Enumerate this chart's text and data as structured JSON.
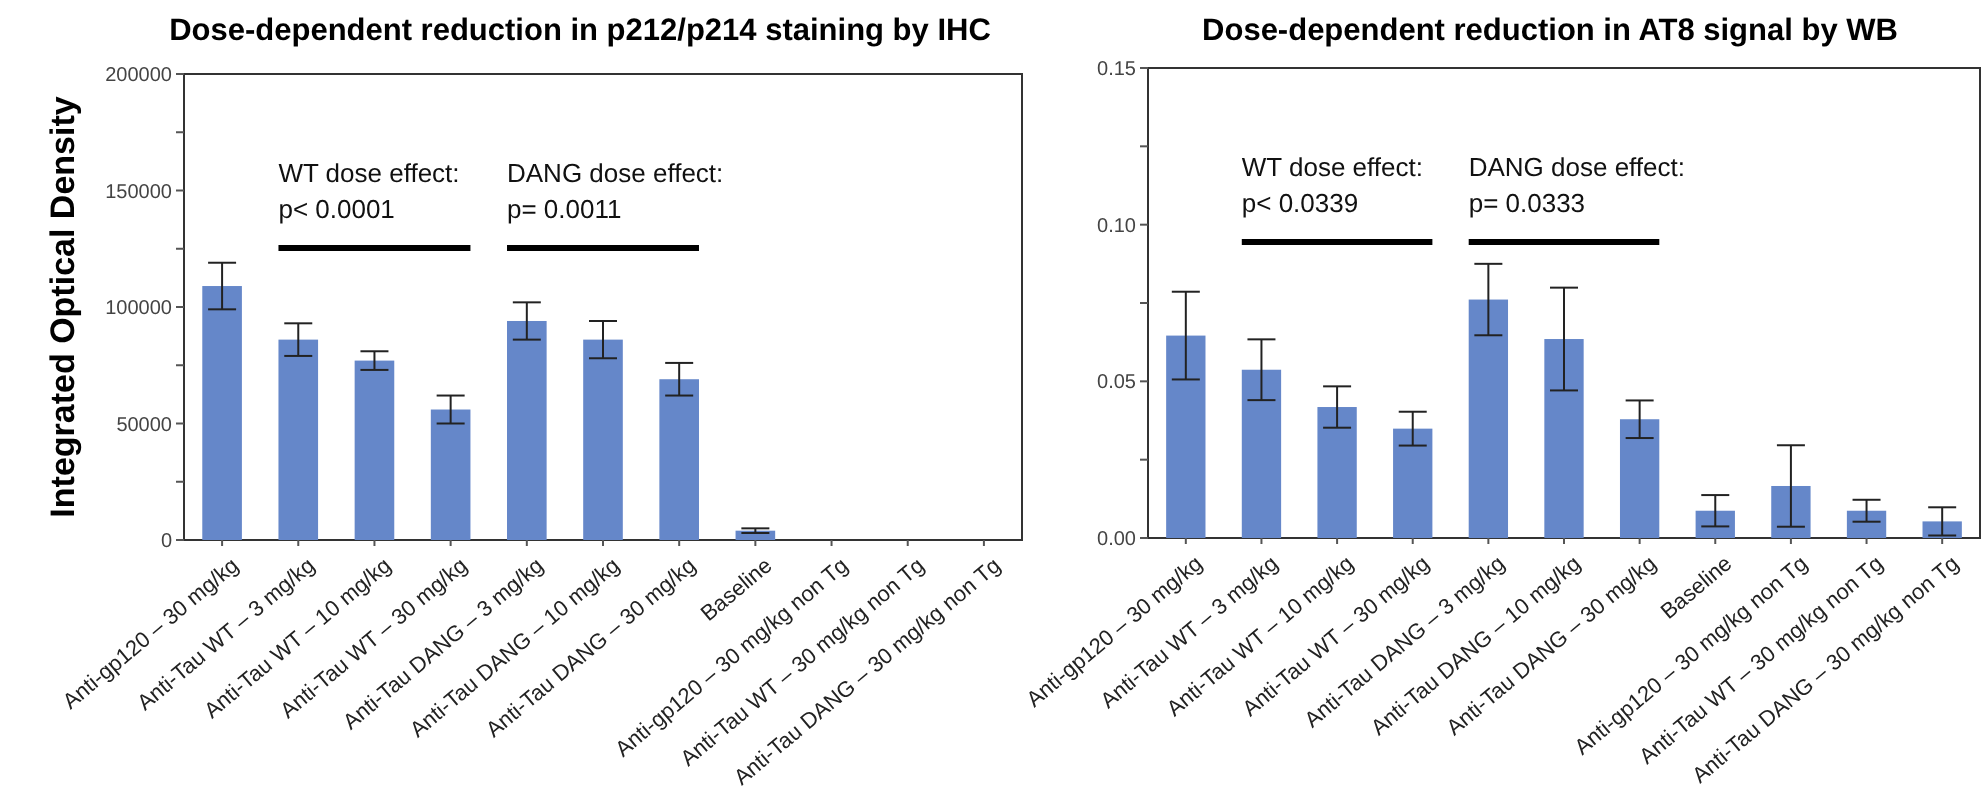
{
  "chart_data": [
    {
      "type": "bar",
      "title": "Dose-dependent reduction in p212/p214 staining by IHC",
      "ylabel": "Integrated Optical Density",
      "categories": [
        "Anti-gp120 – 30 mg/kg",
        "Anti-Tau WT – 3 mg/kg",
        "Anti-Tau WT – 10 mg/kg",
        "Anti-Tau WT – 30 mg/kg",
        "Anti-Tau DANG – 3 mg/kg",
        "Anti-Tau DANG – 10 mg/kg",
        "Anti-Tau DANG – 30 mg/kg",
        "Baseline",
        "Anti-gp120 – 30 mg/kg non Tg",
        "Anti-Tau WT – 30 mg/kg non Tg",
        "Anti-Tau DANG – 30 mg/kg non Tg"
      ],
      "values": [
        109000,
        86000,
        77000,
        56000,
        94000,
        86000,
        69000,
        4000,
        0,
        0,
        0
      ],
      "errors": [
        10000,
        7000,
        4000,
        6000,
        8000,
        8000,
        7000,
        1000,
        null,
        null,
        null
      ],
      "color": "#6587c9",
      "ylim": [
        0,
        200000
      ],
      "yticks": [
        0,
        {
          "value": 25000,
          "label": null
        },
        50000,
        {
          "value": 75000,
          "label": null
        },
        100000,
        {
          "value": 125000,
          "label": null
        },
        150000,
        {
          "value": 175000,
          "label": null
        },
        200000
      ],
      "annotations": [
        "WT dose effect:\np< 0.0001",
        "DANG dose effect:\np= 0.0011"
      ]
    },
    {
      "type": "bar",
      "title": "Dose-dependent reduction in AT8 signal by WB",
      "categories": [
        "Anti-gp120 – 30 mg/kg",
        "Anti-Tau WT – 3 mg/kg",
        "Anti-Tau WT – 10 mg/kg",
        "Anti-Tau WT – 30 mg/kg",
        "Anti-Tau DANG – 3 mg/kg",
        "Anti-Tau DANG – 10 mg/kg",
        "Anti-Tau DANG – 30 mg/kg",
        "Baseline",
        "Anti-gp120 – 30 mg/kg non Tg",
        "Anti-Tau WT – 30 mg/kg non Tg",
        "Anti-Tau DANG – 30 mg/kg non Tg"
      ],
      "values": [
        0.0646,
        0.0537,
        0.0418,
        0.0349,
        0.0761,
        0.0635,
        0.0379,
        0.0087,
        0.0166,
        0.0087,
        0.0053
      ],
      "errors": [
        0.014,
        0.0097,
        0.0066,
        0.0054,
        0.0114,
        0.0164,
        0.006,
        0.005,
        0.013,
        0.0035,
        0.0045
      ],
      "color": "#6587c9",
      "ylim": [
        0,
        0.15
      ],
      "yticks": [
        {
          "value": 0,
          "label": "0.00"
        },
        {
          "value": 0.025,
          "label": null
        },
        0.05,
        {
          "value": 0.075,
          "label": null
        },
        {
          "value": 0.1,
          "label": "0.10"
        },
        {
          "value": 0.125,
          "label": null
        },
        {
          "value": 0.15,
          "label": "0.15"
        }
      ],
      "annotations": [
        "WT dose effect:\np< 0.0339",
        "DANG dose effect:\np= 0.0333"
      ]
    }
  ]
}
